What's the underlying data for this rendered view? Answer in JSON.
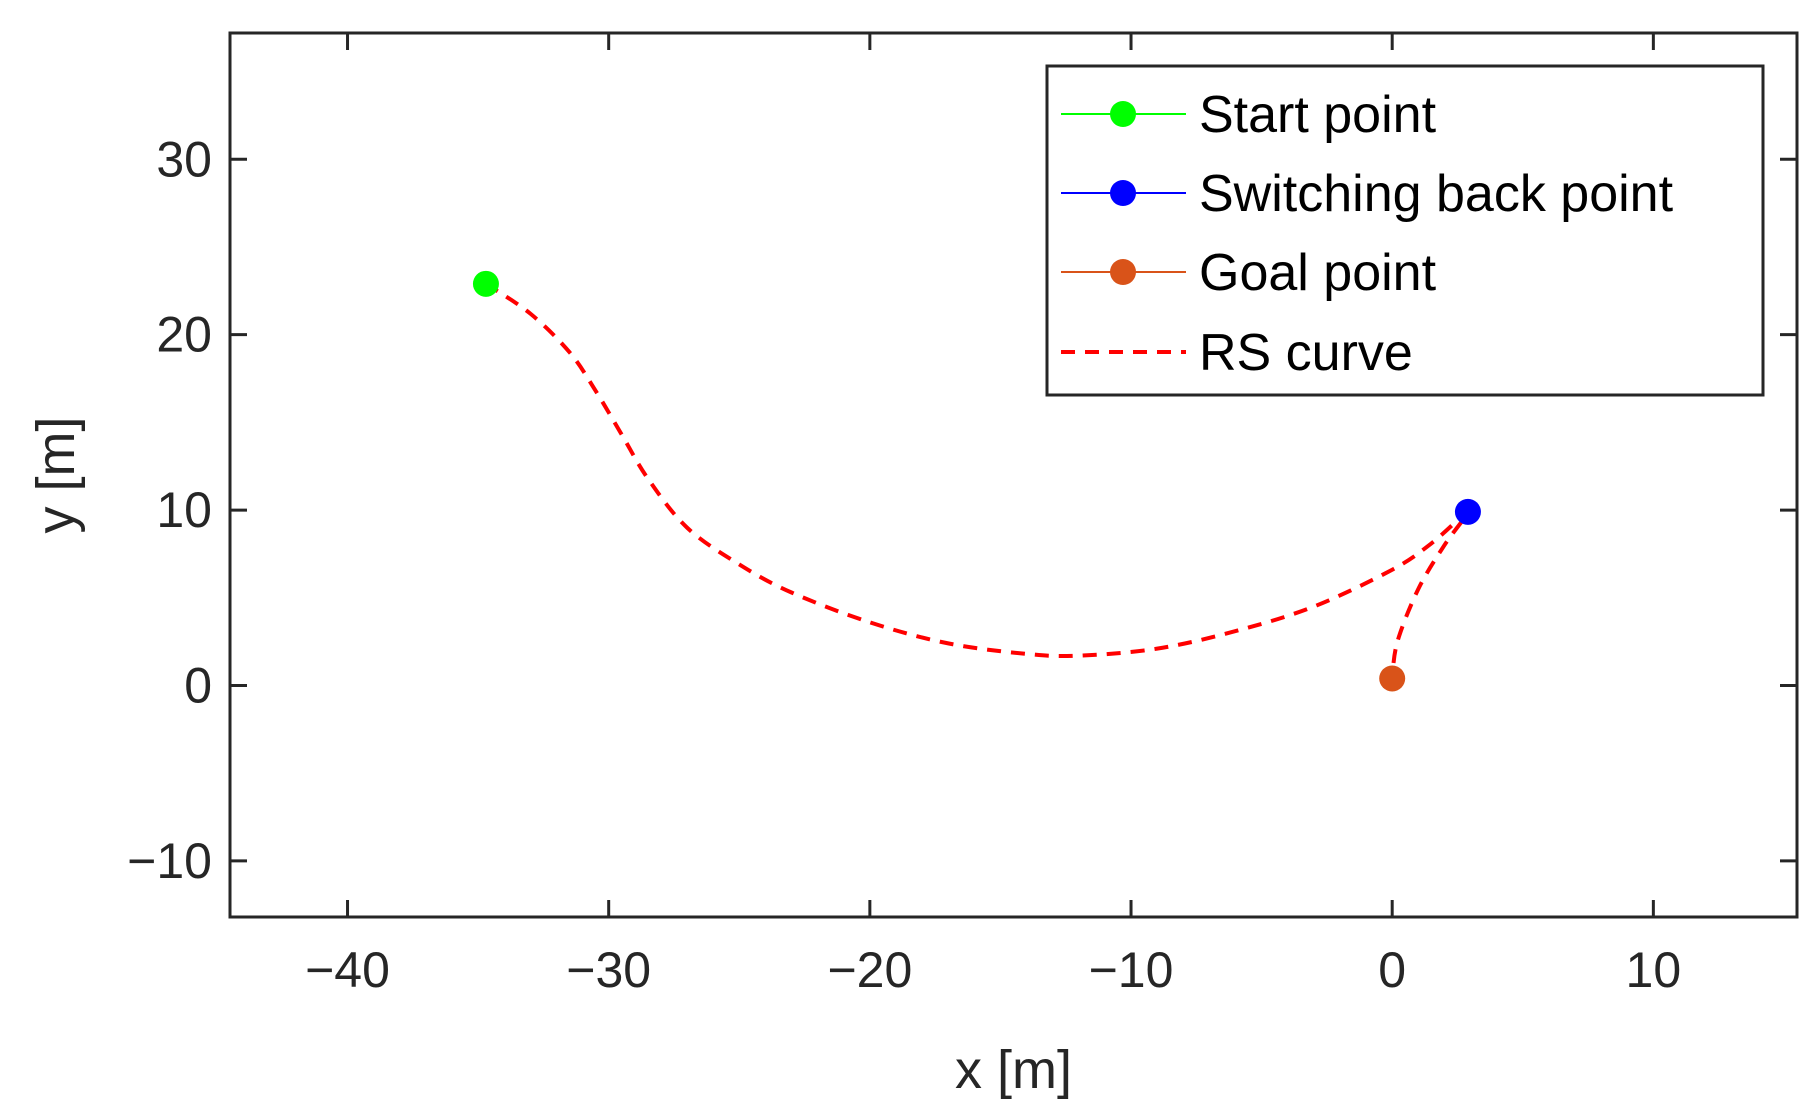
{
  "chart_data": {
    "type": "line",
    "title": "",
    "xlabel": "x [m]",
    "ylabel": "y [m]",
    "xlim": [
      -44.5,
      15.5
    ],
    "ylim": [
      -13.2,
      37.2
    ],
    "grid": false,
    "legend_position": "top-right",
    "x_ticks": [
      {
        "value": -40,
        "label": "−40"
      },
      {
        "value": -30,
        "label": "−30"
      },
      {
        "value": -20,
        "label": "−20"
      },
      {
        "value": -10,
        "label": "−10"
      },
      {
        "value": 0,
        "label": "0"
      },
      {
        "value": 10,
        "label": "10"
      }
    ],
    "y_ticks": [
      {
        "value": -10,
        "label": "−10"
      },
      {
        "value": 0,
        "label": "0"
      },
      {
        "value": 10,
        "label": "10"
      },
      {
        "value": 20,
        "label": "20"
      },
      {
        "value": 30,
        "label": "30"
      }
    ],
    "series": [
      {
        "name": "Start point",
        "kind": "marker",
        "color": "#00ff00",
        "x": [
          -34.7
        ],
        "y": [
          22.9
        ]
      },
      {
        "name": "Switching back point",
        "kind": "marker",
        "color": "#0000ff",
        "x": [
          2.9
        ],
        "y": [
          9.9
        ]
      },
      {
        "name": "Goal point",
        "kind": "marker",
        "color": "#d95319",
        "x": [
          0.0
        ],
        "y": [
          0.4
        ]
      },
      {
        "name": "RS curve",
        "kind": "dashed-line",
        "color": "#ff0000",
        "x": [
          -34.7,
          -33.0,
          -31.5,
          -30.5,
          -29.5,
          -28.5,
          -27.0,
          -25.0,
          -23.0,
          -20.0,
          -17.0,
          -14.0,
          -12.0,
          -9.0,
          -6.0,
          -3.0,
          0.0,
          1.5,
          2.9,
          2.0,
          1.0,
          0.2,
          0.0
        ],
        "y": [
          22.9,
          21.2,
          19.0,
          16.8,
          14.3,
          11.8,
          9.0,
          6.9,
          5.3,
          3.6,
          2.4,
          1.8,
          1.7,
          2.1,
          3.1,
          4.5,
          6.6,
          8.1,
          9.9,
          8.0,
          5.5,
          2.5,
          0.4
        ]
      }
    ]
  }
}
